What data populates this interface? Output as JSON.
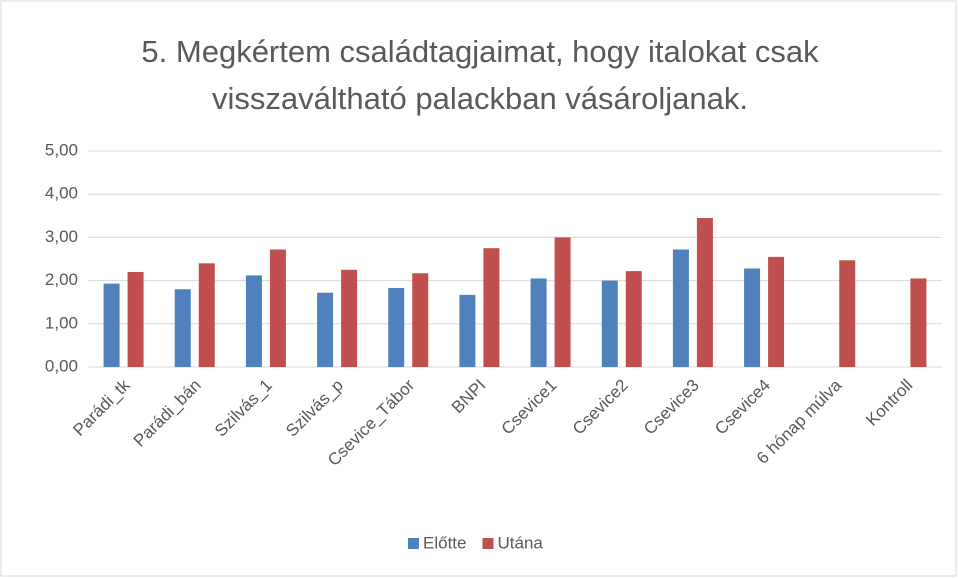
{
  "chart_data": {
    "type": "bar",
    "title": "5. Megkértem családtagjaimat, hogy italokat csak visszaváltható palackban vásároljanak.",
    "categories": [
      "Parádi_tk",
      "Parádi_bán",
      "Szilvás_1",
      "Szilvás_p",
      "Csevice_Tábor",
      "BNPI",
      "Csevice1",
      "Csevice2",
      "Csevice3",
      "Csevice4",
      "6 hónap múlva",
      "Kontroll"
    ],
    "series": [
      {
        "name": "Előtte",
        "color": "#4f81bd",
        "values": [
          1.93,
          1.8,
          2.12,
          1.72,
          1.83,
          1.67,
          2.05,
          2.0,
          2.72,
          2.28,
          null,
          null
        ]
      },
      {
        "name": "Utána",
        "color": "#c0504d",
        "values": [
          2.2,
          2.4,
          2.72,
          2.25,
          2.17,
          2.75,
          3.0,
          2.22,
          3.45,
          2.55,
          2.47,
          2.05
        ]
      }
    ],
    "ylim": [
      0,
      5
    ],
    "yticks": [
      {
        "value": 0,
        "label": "0,00"
      },
      {
        "value": 1,
        "label": "1,00"
      },
      {
        "value": 2,
        "label": "2,00"
      },
      {
        "value": 3,
        "label": "3,00"
      },
      {
        "value": 4,
        "label": "4,00"
      },
      {
        "value": 5,
        "label": "5,00"
      }
    ],
    "grid": true,
    "legend": "bottom"
  }
}
